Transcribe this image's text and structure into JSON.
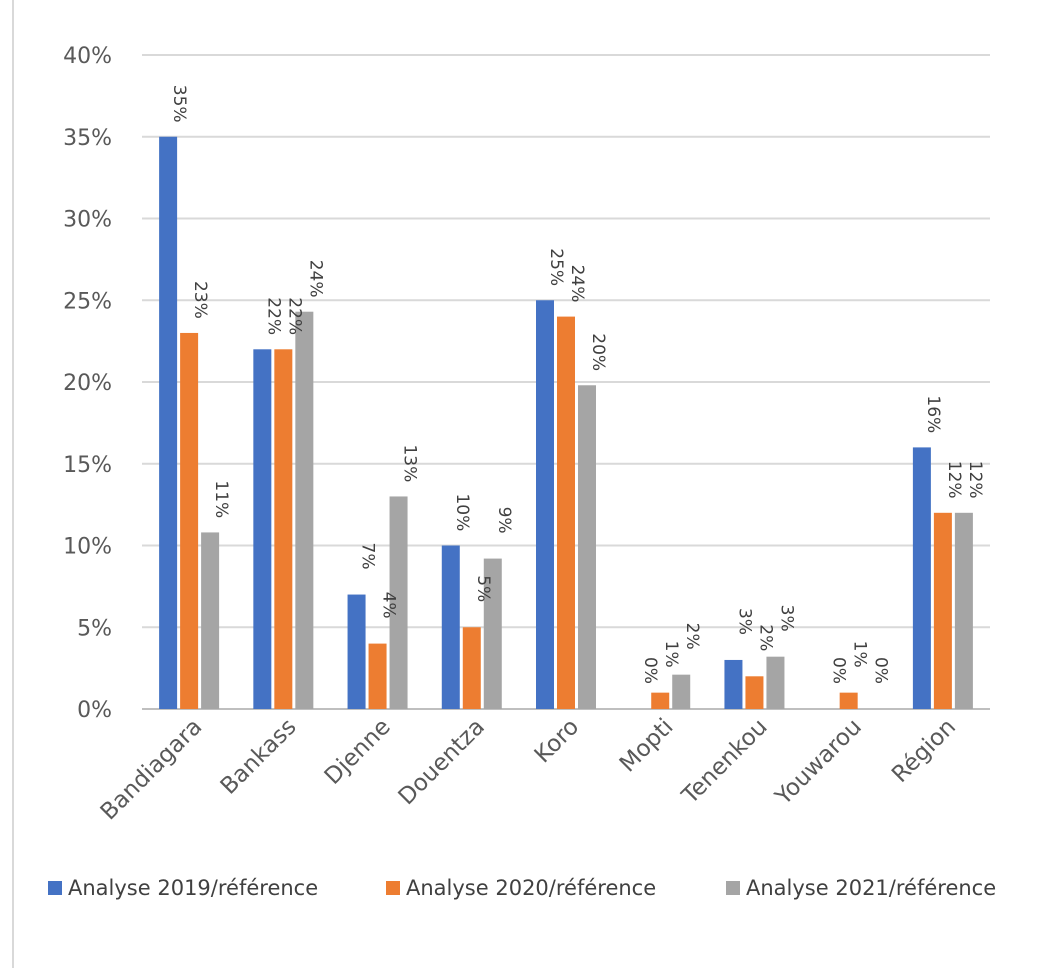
{
  "chart_data": {
    "type": "bar",
    "title": "",
    "xlabel": "",
    "ylabel": "",
    "ylim": [
      0,
      40
    ],
    "yticks": [
      0,
      5,
      10,
      15,
      20,
      25,
      30,
      35,
      40
    ],
    "ytick_format": "{v}%",
    "grid": true,
    "legend_position": "bottom",
    "categories": [
      "Bandiagara",
      "Bankass",
      "Djenne",
      "Douentza",
      "Koro",
      "Mopti",
      "Tenenkou",
      "Youwarou",
      "Région"
    ],
    "series": [
      {
        "name": "Analyse 2019/référence",
        "color": "#4472c4",
        "values": [
          35,
          22,
          7,
          10,
          25,
          0,
          3,
          0,
          16
        ],
        "labels": [
          "35%",
          "22%",
          "7%",
          "10%",
          "25%",
          "0%",
          "3%",
          "0%",
          "16%"
        ]
      },
      {
        "name": "Analyse 2020/référence",
        "color": "#ed7d31",
        "values": [
          23,
          22,
          4,
          5,
          24,
          1,
          2,
          1,
          12
        ],
        "labels": [
          "23%",
          "22%",
          "4%",
          "5%",
          "24%",
          "1%",
          "2%",
          "1%",
          "12%"
        ]
      },
      {
        "name": "Analyse 2021/référence",
        "color": "#a5a5a5",
        "values": [
          10.8,
          24.3,
          13,
          9.2,
          19.8,
          2.1,
          3.2,
          0,
          12
        ],
        "labels": [
          "11%",
          "24%",
          "13%",
          "9%",
          "20%",
          "2%",
          "3%",
          "0%",
          "12%"
        ]
      }
    ]
  }
}
